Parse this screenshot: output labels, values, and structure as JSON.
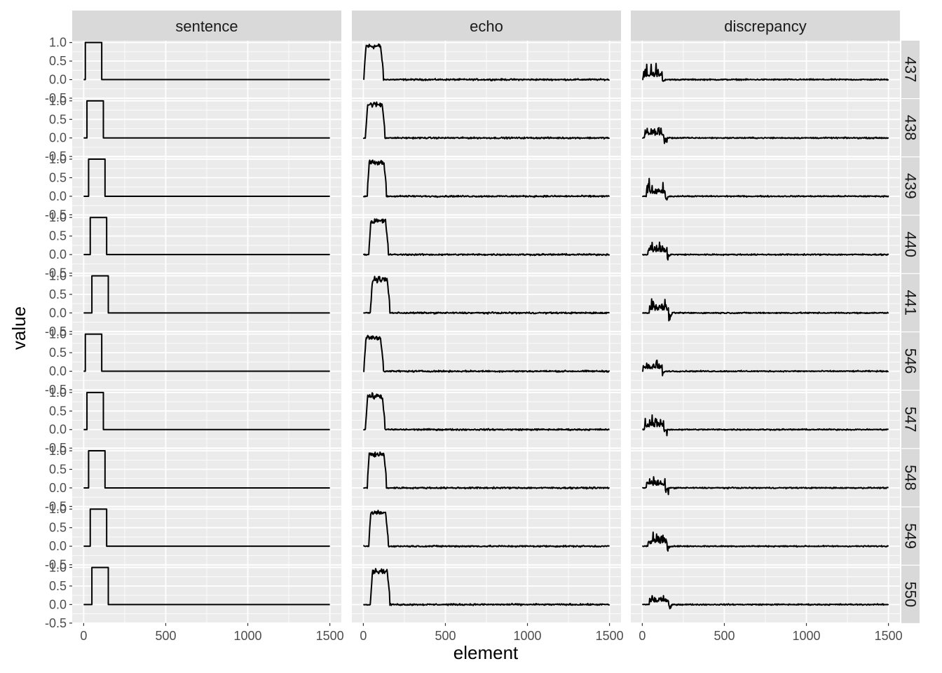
{
  "chart_data": {
    "type": "line",
    "facet": "grid",
    "columns": [
      "sentence",
      "echo",
      "discrepancy"
    ],
    "rows": [
      "437",
      "438",
      "439",
      "440",
      "441",
      "546",
      "547",
      "548",
      "549",
      "550"
    ],
    "xlabel": "element",
    "ylabel": "value",
    "xlim": [
      -70,
      1570
    ],
    "ylim": [
      -0.5,
      1.05
    ],
    "x_ticks": [
      0,
      500,
      1000,
      1500
    ],
    "x_tick_labels": [
      "0",
      "500",
      "1000",
      "1500"
    ],
    "y_ticks": [
      -0.5,
      0.0,
      0.5,
      1.0
    ],
    "y_tick_labels": [
      "-0.5",
      "0.0",
      "0.5",
      "1.0"
    ],
    "grid": true,
    "line_color": "#000000",
    "panel_bg": "#ebebeb",
    "strip_bg": "#d9d9d9",
    "x_max": 1500,
    "sentence_pulse": {
      "437": [
        10,
        110
      ],
      "438": [
        20,
        120
      ],
      "439": [
        30,
        130
      ],
      "440": [
        40,
        140
      ],
      "441": [
        50,
        150
      ],
      "546": [
        10,
        110
      ],
      "547": [
        20,
        120
      ],
      "548": [
        30,
        130
      ],
      "549": [
        40,
        140
      ],
      "550": [
        50,
        150
      ]
    },
    "echo_summary": "Noisy pulse near 1.0 over the sentence on-range, decaying to ~0 afterwards",
    "discrepancy_summary": "Spiky residual up to ~0.5 during the pulse, then ~0"
  }
}
